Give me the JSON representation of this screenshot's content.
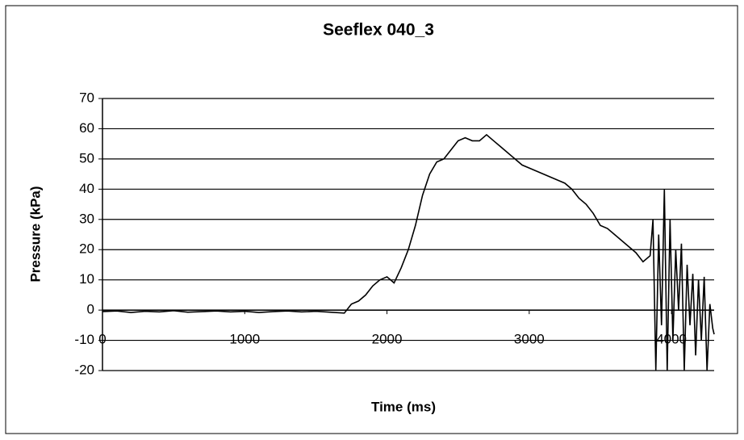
{
  "chart_data": {
    "type": "line",
    "title": "Seeflex 040_3",
    "xlabel": "Time (ms)",
    "ylabel": "Pressure (kPa)",
    "x": [
      0,
      100,
      200,
      300,
      400,
      500,
      600,
      700,
      800,
      900,
      1000,
      1100,
      1200,
      1300,
      1400,
      1500,
      1600,
      1700,
      1750,
      1800,
      1850,
      1900,
      1950,
      2000,
      2050,
      2100,
      2150,
      2200,
      2250,
      2300,
      2350,
      2400,
      2450,
      2500,
      2550,
      2600,
      2650,
      2700,
      2750,
      2800,
      2850,
      2900,
      2950,
      3000,
      3050,
      3100,
      3150,
      3200,
      3250,
      3300,
      3350,
      3400,
      3450,
      3500,
      3550,
      3600,
      3650,
      3700,
      3750,
      3800,
      3850,
      3870,
      3890,
      3910,
      3930,
      3950,
      3970,
      3990,
      4010,
      4030,
      4050,
      4070,
      4090,
      4110,
      4130,
      4150,
      4170,
      4190,
      4210,
      4230,
      4250,
      4270,
      4290,
      4300
    ],
    "series": [
      {
        "name": "Pressure",
        "color": "#000000",
        "values": [
          -0.5,
          -0.3,
          -0.8,
          -0.4,
          -0.6,
          -0.2,
          -0.7,
          -0.5,
          -0.3,
          -0.6,
          -0.4,
          -0.8,
          -0.5,
          -0.3,
          -0.6,
          -0.4,
          -0.7,
          -1,
          2,
          3,
          5,
          8,
          10,
          11,
          9,
          14,
          20,
          28,
          38,
          45,
          49,
          50,
          53,
          56,
          57,
          56,
          56,
          58,
          56,
          54,
          52,
          50,
          48,
          47,
          46,
          45,
          44,
          43,
          42,
          40,
          37,
          35,
          32,
          28,
          27,
          25,
          23,
          21,
          19,
          16,
          18,
          30,
          -20,
          25,
          -5,
          40,
          -20,
          30,
          -10,
          20,
          0,
          22,
          -20,
          15,
          -5,
          12,
          -15,
          10,
          -10,
          11,
          -20,
          2,
          -6,
          -8
        ]
      }
    ],
    "xlim": [
      0,
      4300
    ],
    "xticks": [
      0,
      1000,
      2000,
      3000,
      4000
    ],
    "ylim": [
      -20,
      70
    ],
    "yticks": [
      -20,
      -10,
      0,
      10,
      20,
      30,
      40,
      50,
      60,
      70
    ],
    "grid": true
  }
}
